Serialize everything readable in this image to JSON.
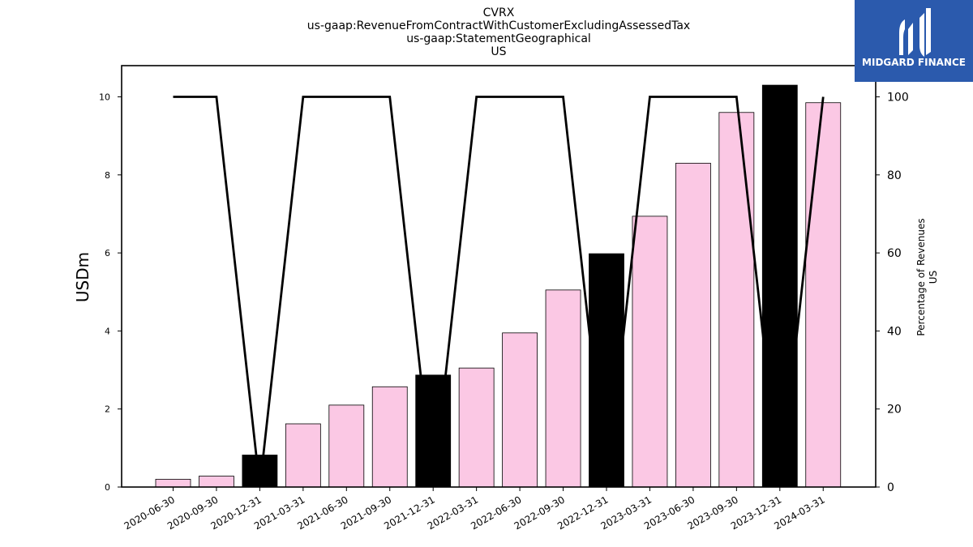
{
  "chart_data": {
    "type": "bar",
    "title_lines": [
      "CVRX",
      "us-gaap:RevenueFromContractWithCustomerExcludingAssessedTax",
      "us-gaap:StatementGeographical",
      "US"
    ],
    "ylabel": "USDm",
    "ylabel_right": [
      "Percentage of Revenues",
      "US"
    ],
    "categories": [
      "2020-06-30",
      "2020-09-30",
      "2020-12-31",
      "2021-03-31",
      "2021-06-30",
      "2021-09-30",
      "2021-12-31",
      "2022-03-31",
      "2022-06-30",
      "2022-09-30",
      "2022-12-31",
      "2023-03-31",
      "2023-06-30",
      "2023-09-30",
      "2023-12-31",
      "2024-03-31"
    ],
    "values": [
      0.2,
      0.28,
      0.82,
      1.62,
      2.1,
      2.57,
      2.87,
      3.05,
      3.95,
      5.05,
      5.98,
      6.94,
      8.3,
      9.6,
      10.3,
      9.85
    ],
    "bar_highlight": [
      false,
      false,
      true,
      false,
      false,
      false,
      true,
      false,
      false,
      false,
      true,
      false,
      false,
      false,
      true,
      false
    ],
    "percent_series": [
      100,
      100,
      0,
      100,
      100,
      100,
      0,
      100,
      100,
      100,
      0,
      100,
      100,
      100,
      0,
      100
    ],
    "ylim": [
      0,
      10.8
    ],
    "ylim_right": [
      0,
      108
    ],
    "yticks": [
      0,
      2,
      4,
      6,
      8,
      10
    ],
    "yticks_right": [
      0,
      20,
      40,
      60,
      80,
      100
    ],
    "colors": {
      "bar": "#fbc8e4",
      "bar_highlight": "#000000",
      "line": "#000000"
    }
  },
  "logo": {
    "text": "MIDGARD FINANCE",
    "color": "#2b5aad"
  }
}
